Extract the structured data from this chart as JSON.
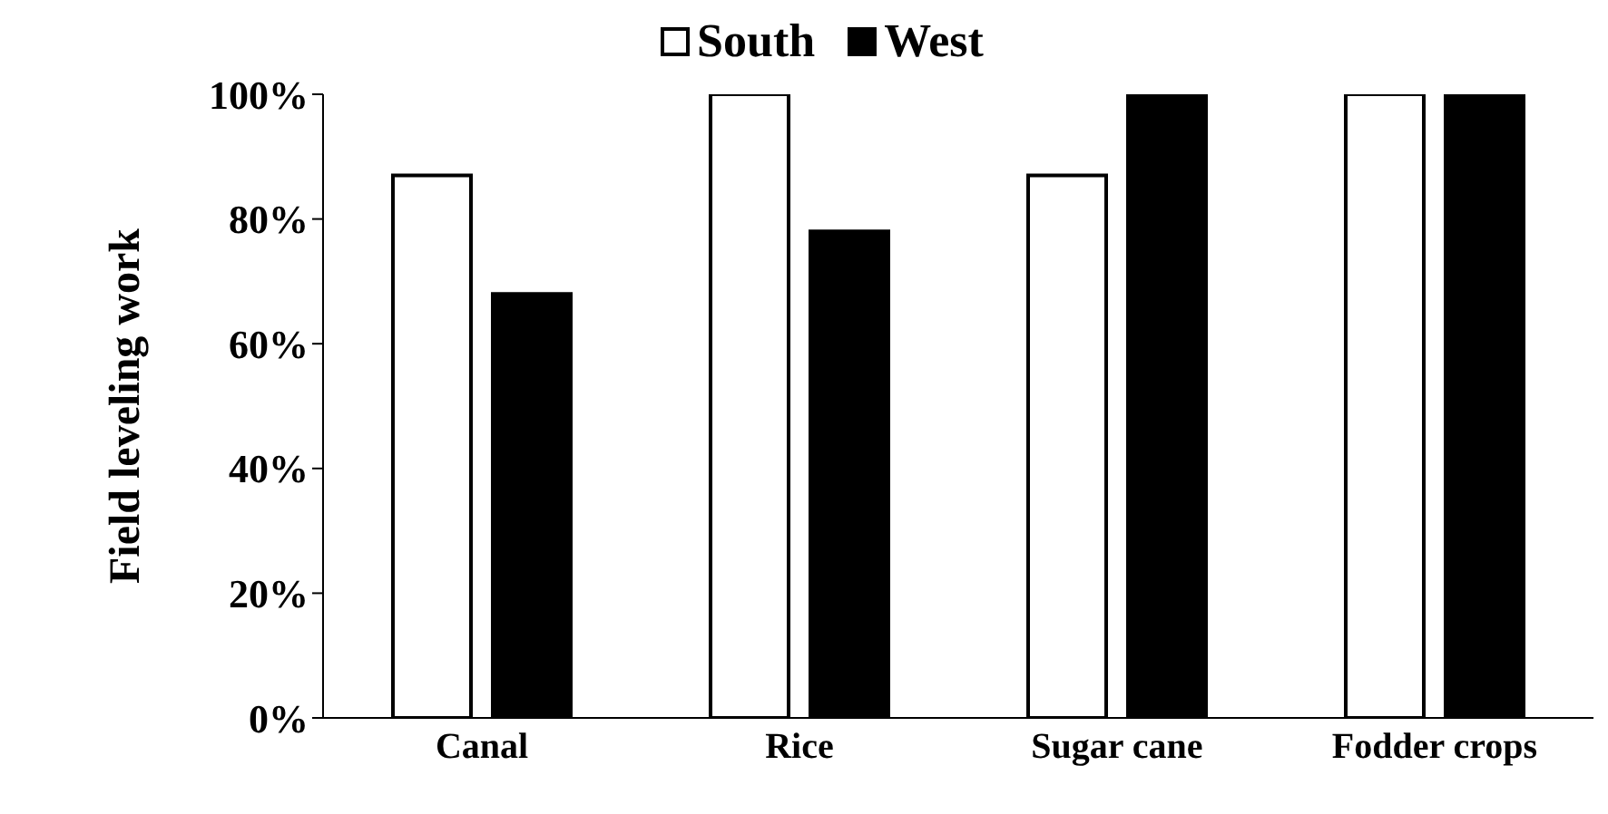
{
  "chart_data": {
    "type": "bar",
    "ylabel": "Field leveling work",
    "categories": [
      "Canal",
      "Rice",
      "Sugar cane",
      "Fodder crops"
    ],
    "series": [
      {
        "name": "South",
        "color": "#ffffff",
        "values": [
          87,
          100,
          87,
          100
        ]
      },
      {
        "name": "West",
        "color": "#000000",
        "values": [
          68,
          78,
          100,
          100
        ]
      }
    ],
    "ylim": [
      0,
      100
    ],
    "yticks": [
      {
        "value": 0,
        "label": "0%"
      },
      {
        "value": 20,
        "label": "20%"
      },
      {
        "value": 40,
        "label": "40%"
      },
      {
        "value": 60,
        "label": "60%"
      },
      {
        "value": 80,
        "label": "80%"
      },
      {
        "value": 100,
        "label": "100%"
      }
    ],
    "grid": false,
    "legend": "top"
  }
}
